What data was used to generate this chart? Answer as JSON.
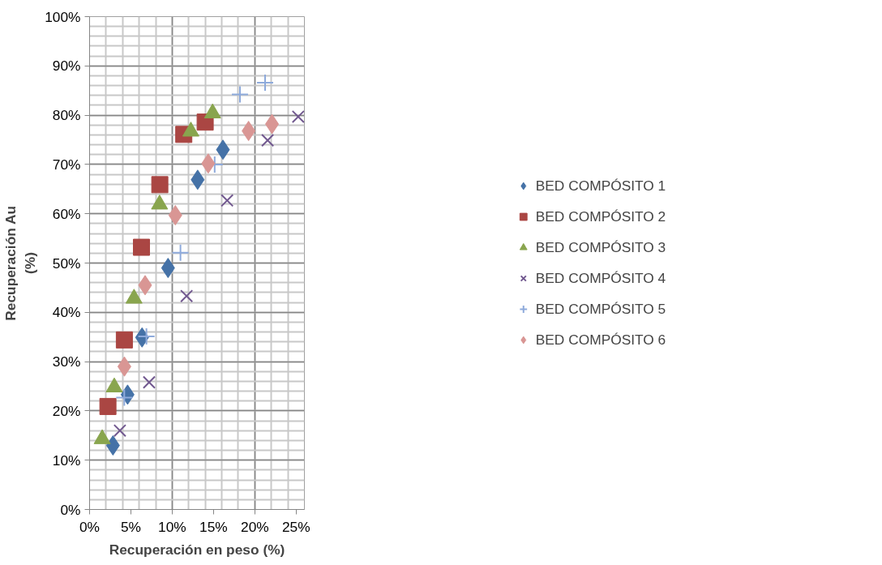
{
  "chart_data": {
    "type": "scatter",
    "xlabel": "Recuperación en peso (%)",
    "ylabel": "Recuperación Au (%)",
    "xlim": [
      0,
      26
    ],
    "ylim": [
      0,
      100
    ],
    "xticks": [
      {
        "value": 0,
        "label": "0%"
      },
      {
        "value": 5,
        "label": "5%"
      },
      {
        "value": 10,
        "label": "10%"
      },
      {
        "value": 15,
        "label": "15%"
      },
      {
        "value": 20,
        "label": "20%"
      },
      {
        "value": 25,
        "label": "25%"
      }
    ],
    "yticks": [
      {
        "value": 0,
        "label": "0%"
      },
      {
        "value": 10,
        "label": "10%"
      },
      {
        "value": 20,
        "label": "20%"
      },
      {
        "value": 30,
        "label": "30%"
      },
      {
        "value": 40,
        "label": "40%"
      },
      {
        "value": 50,
        "label": "50%"
      },
      {
        "value": 60,
        "label": "60%"
      },
      {
        "value": 70,
        "label": "70%"
      },
      {
        "value": 80,
        "label": "80%"
      },
      {
        "value": 90,
        "label": "90%"
      },
      {
        "value": 100,
        "label": "100%"
      }
    ],
    "grid": true,
    "legend": "right",
    "series": [
      {
        "name": "BED COMPÓSITO 1",
        "color": "#4572a7",
        "marker": "diamond",
        "x": [
          2.83,
          4.6,
          6.35,
          9.5,
          13.08,
          16.14
        ],
        "values": [
          13.0,
          23.3,
          34.9,
          49.0,
          66.9,
          73.0
        ]
      },
      {
        "name": "BED COMPÓSITO 2",
        "color": "#aa4643",
        "marker": "square",
        "x": [
          2.22,
          4.21,
          6.28,
          8.5,
          11.4,
          13.99
        ],
        "values": [
          20.9,
          34.4,
          53.2,
          65.9,
          76.1,
          78.6
        ]
      },
      {
        "name": "BED COMPÓSITO 3",
        "color": "#89a54e",
        "marker": "triangle",
        "x": [
          1.53,
          2.99,
          5.38,
          8.47,
          12.26,
          14.89
        ],
        "values": [
          14.3,
          24.8,
          42.8,
          61.9,
          76.7,
          80.4
        ]
      },
      {
        "name": "BED COMPÓSITO 4",
        "color": "#71588f",
        "marker": "x",
        "x": [
          3.67,
          7.21,
          11.74,
          16.65,
          21.55,
          25.25
        ],
        "values": [
          16.0,
          25.8,
          43.3,
          62.7,
          74.9,
          79.7
        ]
      },
      {
        "name": "BED COMPÓSITO 5",
        "color": "#8eaadb",
        "marker": "cross",
        "x": [
          4.2,
          6.88,
          11.0,
          15.14,
          18.2,
          21.24
        ],
        "values": [
          22.7,
          35.1,
          52.1,
          70.0,
          84.2,
          86.6
        ]
      },
      {
        "name": "BED COMPÓSITO 6",
        "color": "#d99694",
        "marker": "diamond",
        "x": [
          4.21,
          6.72,
          10.38,
          14.36,
          19.24,
          22.08
        ],
        "values": [
          29.0,
          45.5,
          59.7,
          70.2,
          76.8,
          78.2
        ]
      }
    ]
  }
}
